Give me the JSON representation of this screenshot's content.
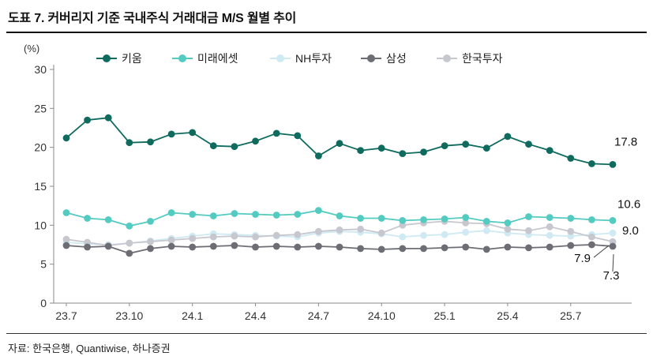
{
  "title": "도표 7. 커버리지 기준 국내주식 거래대금 M/S 월별 추이",
  "source": "자료: 한국은행, Quantiwise, 하나증권",
  "chart_data": {
    "type": "line",
    "title": "커버리지 기준 국내주식 거래대금 M/S 월별 추이",
    "unit_label": "(%)",
    "ylabel": "(%)",
    "ylim": [
      0,
      30
    ],
    "yticks": [
      0,
      5,
      10,
      15,
      20,
      25,
      30
    ],
    "grid": false,
    "legend_position": "top",
    "x": [
      "23.7",
      "23.8",
      "23.9",
      "23.10",
      "23.11",
      "23.12",
      "24.1",
      "24.2",
      "24.3",
      "24.4",
      "24.5",
      "24.6",
      "24.7",
      "24.8",
      "24.9",
      "24.10",
      "24.11",
      "24.12",
      "25.1",
      "25.2",
      "25.3",
      "25.4",
      "25.5",
      "25.6",
      "25.7",
      "25.8",
      "25.9"
    ],
    "x_tick_labels": [
      "23.7",
      "23.10",
      "24.1",
      "24.4",
      "24.7",
      "24.10",
      "25.1",
      "25.4",
      "25.7"
    ],
    "series": [
      {
        "name": "키움",
        "color": "#0f6b5e",
        "end_label": "17.8",
        "values": [
          21.2,
          23.5,
          23.8,
          20.6,
          20.7,
          21.7,
          21.9,
          20.2,
          20.1,
          20.8,
          21.8,
          21.5,
          18.9,
          20.5,
          19.6,
          19.9,
          19.2,
          19.4,
          20.2,
          20.4,
          19.9,
          21.4,
          20.4,
          19.6,
          18.6,
          17.9,
          17.8
        ]
      },
      {
        "name": "미래에셋",
        "color": "#53cbc0",
        "end_label": "10.6",
        "values": [
          11.6,
          10.9,
          10.7,
          9.9,
          10.5,
          11.6,
          11.4,
          11.2,
          11.5,
          11.4,
          11.3,
          11.4,
          11.9,
          11.2,
          10.9,
          10.9,
          10.6,
          10.7,
          10.8,
          11.0,
          10.5,
          10.3,
          11.1,
          11.0,
          10.9,
          10.7,
          10.6
        ]
      },
      {
        "name": "NH투자",
        "color": "#cfeaf3",
        "end_label": "9.0",
        "values": [
          7.8,
          7.6,
          7.5,
          7.7,
          8.0,
          8.3,
          8.6,
          8.9,
          8.8,
          8.7,
          8.6,
          8.5,
          9.0,
          9.2,
          9.1,
          8.9,
          8.5,
          8.7,
          8.8,
          9.1,
          9.3,
          9.0,
          8.8,
          8.7,
          8.6,
          8.8,
          9.0
        ]
      },
      {
        "name": "삼성",
        "color": "#6d6d75",
        "end_label": "7.3",
        "values": [
          7.4,
          7.2,
          7.3,
          6.4,
          7.0,
          7.3,
          7.2,
          7.3,
          7.4,
          7.2,
          7.3,
          7.2,
          7.3,
          7.2,
          7.0,
          6.9,
          7.0,
          7.0,
          7.1,
          7.2,
          6.9,
          7.2,
          7.1,
          7.2,
          7.4,
          7.5,
          7.3
        ]
      },
      {
        "name": "한국투자",
        "color": "#c7c7cf",
        "end_label": "7.9",
        "values": [
          8.2,
          7.8,
          7.4,
          7.7,
          7.9,
          8.1,
          8.3,
          8.5,
          8.6,
          8.5,
          8.7,
          8.8,
          9.2,
          9.4,
          9.5,
          9.0,
          10.0,
          10.3,
          10.5,
          10.3,
          10.2,
          9.5,
          9.3,
          9.8,
          9.2,
          8.5,
          7.9
        ]
      }
    ],
    "draw_order": [
      "NH투자",
      "한국투자",
      "삼성",
      "미래에셋",
      "키움"
    ]
  }
}
